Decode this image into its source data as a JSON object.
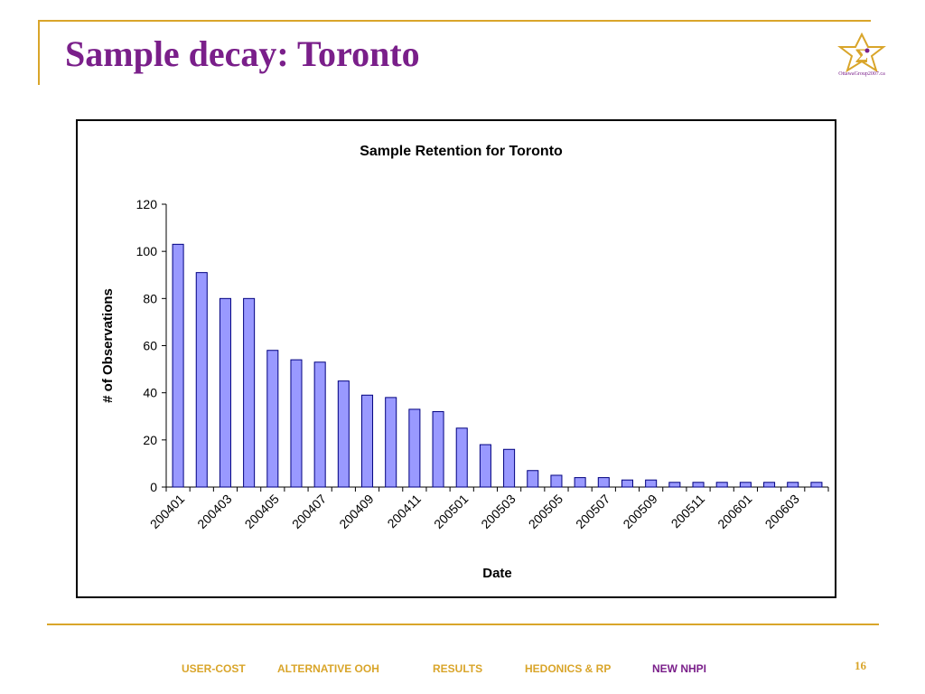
{
  "slide": {
    "title": "Sample decay: Toronto",
    "logo_text": "OttawaGroup2007.ca",
    "page_number": "16",
    "accent_color": "#d9a52a",
    "title_color": "#7a1f8a"
  },
  "footer": {
    "nav": [
      {
        "label": "USER-COST",
        "color": "#d9a52a"
      },
      {
        "label": "ALTERNATIVE OOH",
        "color": "#d9a52a"
      },
      {
        "label": "RESULTS",
        "color": "#d9a52a"
      },
      {
        "label": "HEDONICS & RP",
        "color": "#d9a52a"
      },
      {
        "label": "NEW NHPI",
        "color": "#7a1f8a"
      }
    ]
  },
  "chart_data": {
    "type": "bar",
    "title": "Sample Retention for Toronto",
    "xlabel": "Date",
    "ylabel": "# of Observations",
    "ylim": [
      0,
      120
    ],
    "yticks": [
      0,
      20,
      40,
      60,
      80,
      100,
      120
    ],
    "xtick_labels": [
      "200401",
      "200403",
      "200405",
      "200407",
      "200409",
      "200411",
      "200501",
      "200503",
      "200505",
      "200507",
      "200509",
      "200511",
      "200601",
      "200603"
    ],
    "categories": [
      "200401",
      "200402",
      "200403",
      "200404",
      "200405",
      "200406",
      "200407",
      "200408",
      "200409",
      "200410",
      "200411",
      "200412",
      "200501",
      "200502",
      "200503",
      "200504",
      "200505",
      "200506",
      "200507",
      "200508",
      "200509",
      "200510",
      "200511",
      "200512",
      "200601",
      "200602",
      "200603",
      "200604"
    ],
    "values": [
      103,
      91,
      80,
      80,
      58,
      54,
      53,
      45,
      39,
      38,
      33,
      32,
      25,
      18,
      16,
      7,
      5,
      4,
      4,
      3,
      3,
      2,
      2,
      2,
      2,
      2,
      2,
      2
    ],
    "bar_color": "#9999ff",
    "bar_edge_color": "#000080",
    "grid": false,
    "legend": "none"
  }
}
